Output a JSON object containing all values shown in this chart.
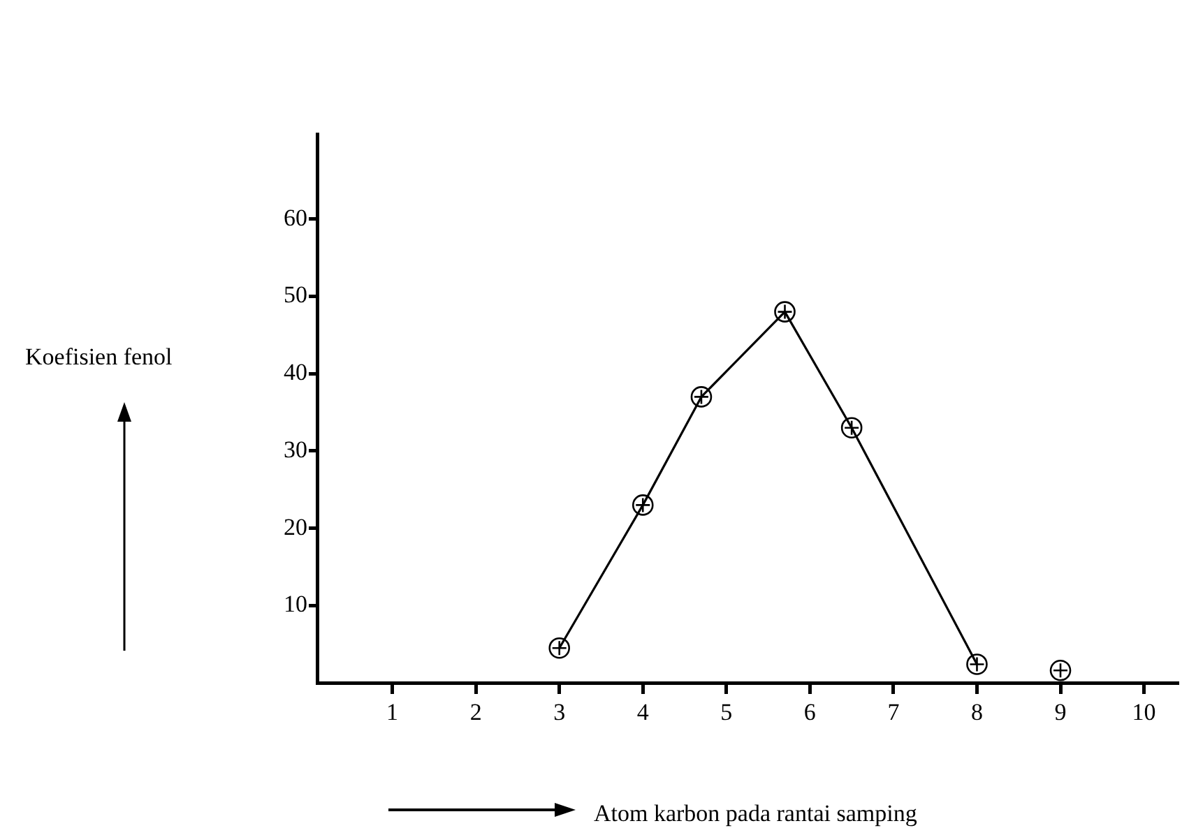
{
  "chart_data": {
    "type": "line",
    "xlabel": "Atom karbon pada rantai samping",
    "ylabel": "Koefisien fenol",
    "series": [
      {
        "color": "#000000",
        "x": [
          3,
          4,
          4.7,
          5.7,
          6.5,
          8
        ],
        "values": [
          4.5,
          23,
          37,
          48,
          33,
          2.4
        ]
      },
      {
        "type": "scatter",
        "color": "#000000",
        "x": [
          9
        ],
        "values": [
          1.6
        ]
      }
    ],
    "xlim": [
      0.1,
      10.4
    ],
    "xticks": [
      1,
      2,
      3,
      4,
      5,
      6,
      7,
      8,
      9,
      10
    ],
    "ylim": [
      0,
      71
    ],
    "yticks": [
      10,
      20,
      30,
      40,
      50,
      60
    ],
    "grid": false,
    "legend": false,
    "marker": "circle",
    "line_style": "solid"
  }
}
